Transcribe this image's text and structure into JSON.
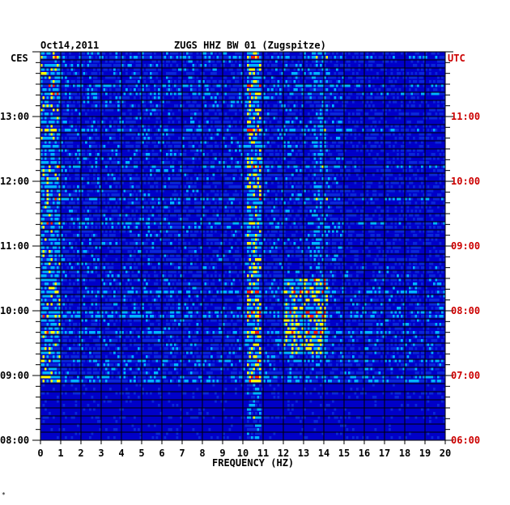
{
  "header": {
    "date": "Oct14,2011",
    "station": "ZUGS HHZ BW 01 (Zugspitze)"
  },
  "labels": {
    "left_tz": "CES",
    "right_tz": "UTC",
    "corner_mark": "*"
  },
  "colors": {
    "background": "#0000c8",
    "low": "#0a28d8",
    "mid": "#00b4ff",
    "high": "#ffff00",
    "peak": "#ff2000",
    "gridline": "#000000",
    "utc_label": "#cc0000"
  },
  "chart_data": {
    "type": "heatmap",
    "title": "ZUGS HHZ BW 01 (Zugspitze)",
    "xlabel": "FREQUENCY (HZ)",
    "ylabel": "",
    "xlim": [
      0,
      20
    ],
    "x_ticks": [
      "0",
      "1",
      "2",
      "3",
      "4",
      "5",
      "6",
      "7",
      "8",
      "9",
      "10",
      "11",
      "12",
      "13",
      "14",
      "15",
      "16",
      "17",
      "18",
      "19",
      "20"
    ],
    "y_range_ces": [
      "08:00",
      "14:00"
    ],
    "y_ticks_left": [
      "13:00",
      "12:00",
      "11:00",
      "10:00",
      "09:00",
      "08:00"
    ],
    "y_ticks_right": [
      "11:00",
      "10:00",
      "09:00",
      "08:00",
      "07:00",
      "06:00"
    ],
    "grid": true,
    "description_bands": [
      {
        "freq_hz": [
          10,
          11
        ],
        "note": "persistent energy"
      },
      {
        "freq_hz": [
          12,
          14
        ],
        "note": "bursts between 09:00 and 10:30 CES"
      },
      {
        "freq_hz": [
          0,
          1
        ],
        "note": "low-frequency energy"
      }
    ]
  }
}
